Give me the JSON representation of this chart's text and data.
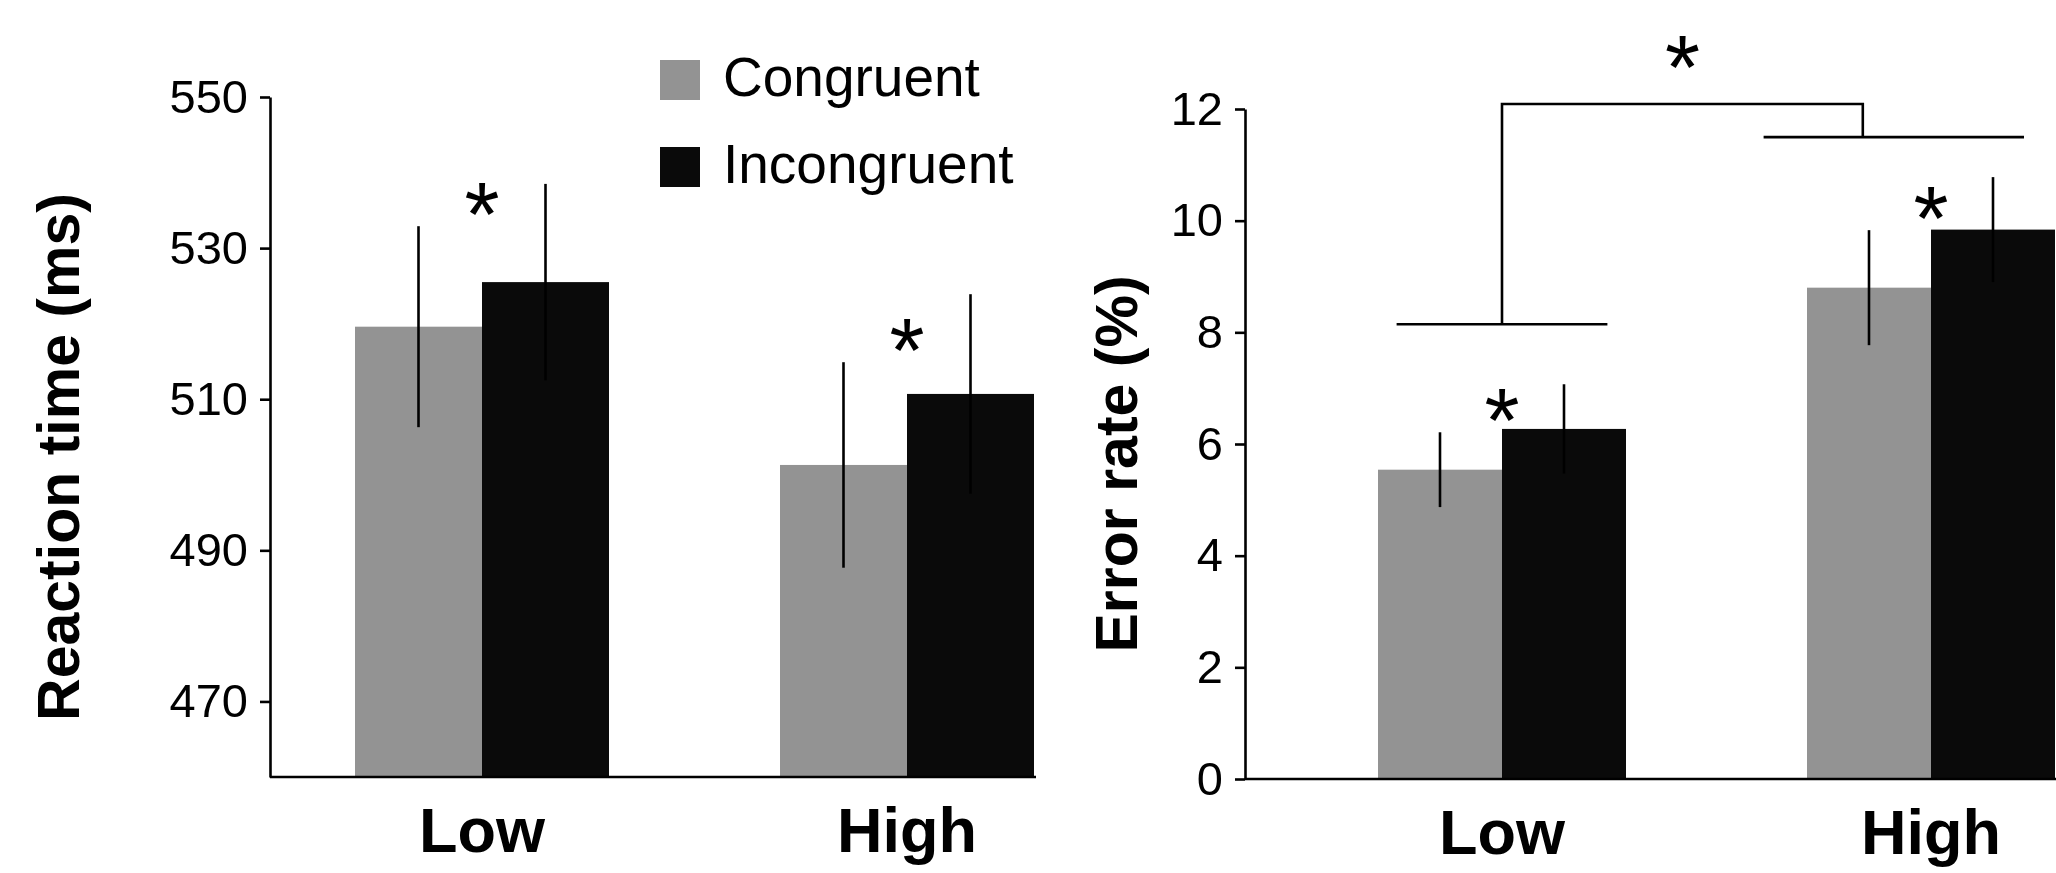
{
  "chart_data": [
    {
      "type": "bar",
      "ylabel": "Reaction time (ms)",
      "categories": [
        "Low",
        "High"
      ],
      "ylim": [
        460,
        550
      ],
      "yticks": [
        470,
        490,
        510,
        530,
        550
      ],
      "legend": "top right",
      "series": [
        {
          "name": "Congruent",
          "color": "#939393",
          "values": [
            519.6,
            501.3
          ],
          "errors": [
            13.3,
            13.6
          ]
        },
        {
          "name": "Incongruent",
          "color": "#0a0a0a",
          "values": [
            525.5,
            510.7
          ],
          "errors": [
            13,
            13.2
          ]
        }
      ],
      "annotations": [
        "*",
        "*"
      ]
    },
    {
      "type": "bar",
      "ylabel": "Error rate (%)",
      "categories": [
        "Low",
        "High"
      ],
      "ylim": [
        0,
        12
      ],
      "yticks": [
        0,
        2,
        4,
        6,
        8,
        10,
        12
      ],
      "series": [
        {
          "color": "#939393",
          "values": [
            5.54,
            8.8
          ],
          "errors": [
            0.67,
            1.03
          ]
        },
        {
          "color": "#0a0a0a",
          "values": [
            6.27,
            9.84
          ],
          "errors": [
            0.8,
            0.94
          ]
        }
      ],
      "annotations": [
        "*",
        "*",
        "*"
      ]
    }
  ]
}
